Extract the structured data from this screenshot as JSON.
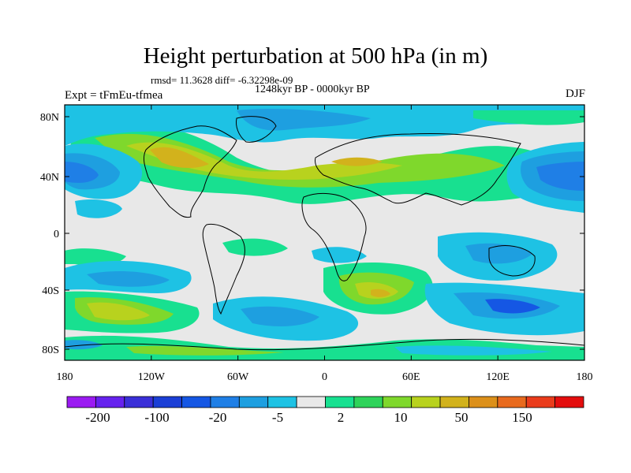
{
  "title": "Height perturbation at 500 hPa (in m)",
  "stats": "rmsd= 11.3628 diff= -6.32298e-09",
  "period": "1248kyr BP - 0000kyr BP",
  "experiment": "Expt = tFmEu-tfmea",
  "season": "DJF",
  "x_ticks": [
    "180",
    "120W",
    "60W",
    "0",
    "60E",
    "120E",
    "180"
  ],
  "y_ticks": [
    "80N",
    "40N",
    "0",
    "40S",
    "80S"
  ],
  "colorbar": {
    "labels": [
      "-200",
      "-100",
      "-20",
      "-5",
      "2",
      "10",
      "50",
      "150"
    ],
    "colors": [
      "#9b1bf2",
      "#6622ee",
      "#3a2fd8",
      "#1b3fd6",
      "#1557e4",
      "#1f7fe6",
      "#1e9fe0",
      "#1ec2e4",
      "#e8e8e8",
      "#18e090",
      "#2ed35a",
      "#7fd82c",
      "#b8d21e",
      "#d2b21c",
      "#dc901a",
      "#e86a1e",
      "#ea3c1c",
      "#e40e0e"
    ]
  },
  "palette": {
    "neutral": "#e8e8e8",
    "lightgreen": "#18e090",
    "green": "#7fd82c",
    "olive": "#b8d21e",
    "mustard": "#d2b21c",
    "cyan": "#1ec2e4",
    "sky": "#1e9fe0",
    "blue": "#1f7fe6",
    "deep": "#1557e4"
  }
}
